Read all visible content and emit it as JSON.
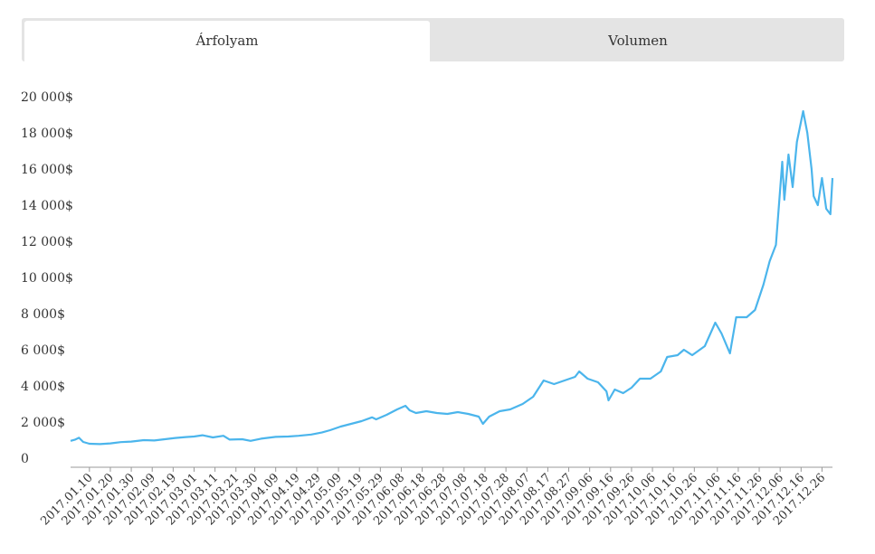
{
  "tabs": [
    {
      "label": "Árfolyam",
      "active": true
    },
    {
      "label": "Volumen",
      "active": false
    }
  ],
  "colors": {
    "line": "#4bb5ec",
    "axis": "#999999",
    "tab_bg": "#e4e4e4"
  },
  "chart_data": {
    "type": "line",
    "title": "",
    "xlabel": "",
    "ylabel": "",
    "ylim": [
      0,
      20000
    ],
    "y_ticks": [
      "0",
      "2 000$",
      "4 000$",
      "6 000$",
      "8 000$",
      "10 000$",
      "12 000$",
      "14 000$",
      "16 000$",
      "18 000$",
      "20 000$"
    ],
    "y_tick_values": [
      0,
      2000,
      4000,
      6000,
      8000,
      10000,
      12000,
      14000,
      16000,
      18000,
      20000
    ],
    "x_ticks": [
      "2017.01.10",
      "2017.01.20",
      "2017.01.30",
      "2017.02.09",
      "2017.02.19",
      "2017.03.01",
      "2017.03.11",
      "2017.03.21",
      "2017.03.30",
      "2017.04.09",
      "2017.04.19",
      "2017.04.29",
      "2017.05.09",
      "2017.05.19",
      "2017.05.29",
      "2017.06.08",
      "2017.06.18",
      "2017.06.28",
      "2017.07.08",
      "2017.07.18",
      "2017.07.28",
      "2017.08.07",
      "2017.08.17",
      "2017.08.27",
      "2017.09.06",
      "2017.09.16",
      "2017.09.26",
      "2017.10.06",
      "2017.10.16",
      "2017.10.26",
      "2017.11.06",
      "2017.11.16",
      "2017.11.26",
      "2017.12.06",
      "2017.12.16",
      "2017.12.26"
    ],
    "x_range": [
      "2017.01.01",
      "2017.12.31"
    ],
    "grid": false,
    "legend": "none",
    "series": [
      {
        "x": [
          "2017.01.01",
          "2017.01.03",
          "2017.01.05",
          "2017.01.07",
          "2017.01.10",
          "2017.01.15",
          "2017.01.20",
          "2017.01.25",
          "2017.01.30",
          "2017.02.05",
          "2017.02.10",
          "2017.02.15",
          "2017.02.20",
          "2017.02.25",
          "2017.03.01",
          "2017.03.05",
          "2017.03.10",
          "2017.03.15",
          "2017.03.18",
          "2017.03.24",
          "2017.03.28",
          "2017.04.02",
          "2017.04.09",
          "2017.04.15",
          "2017.04.20",
          "2017.04.26",
          "2017.05.01",
          "2017.05.05",
          "2017.05.10",
          "2017.05.15",
          "2017.05.20",
          "2017.05.25",
          "2017.05.27",
          "2017.06.01",
          "2017.06.06",
          "2017.06.10",
          "2017.06.12",
          "2017.06.15",
          "2017.06.20",
          "2017.06.25",
          "2017.06.30",
          "2017.07.05",
          "2017.07.10",
          "2017.07.15",
          "2017.07.17",
          "2017.07.20",
          "2017.07.25",
          "2017.07.30",
          "2017.08.05",
          "2017.08.10",
          "2017.08.15",
          "2017.08.20",
          "2017.08.25",
          "2017.08.30",
          "2017.09.01",
          "2017.09.05",
          "2017.09.10",
          "2017.09.14",
          "2017.09.15",
          "2017.09.18",
          "2017.09.22",
          "2017.09.26",
          "2017.09.30",
          "2017.10.05",
          "2017.10.10",
          "2017.10.13",
          "2017.10.18",
          "2017.10.21",
          "2017.10.25",
          "2017.10.31",
          "2017.11.05",
          "2017.11.08",
          "2017.11.12",
          "2017.11.15",
          "2017.11.20",
          "2017.11.24",
          "2017.11.28",
          "2017.12.01",
          "2017.12.04",
          "2017.12.07",
          "2017.12.08",
          "2017.12.10",
          "2017.12.12",
          "2017.12.14",
          "2017.12.17",
          "2017.12.19",
          "2017.12.21",
          "2017.12.22",
          "2017.12.24",
          "2017.12.26",
          "2017.12.28",
          "2017.12.30",
          "2017.12.31"
        ],
        "values": [
          960,
          1020,
          1130,
          900,
          800,
          780,
          820,
          890,
          920,
          1000,
          980,
          1050,
          1120,
          1170,
          1200,
          1270,
          1150,
          1240,
          1030,
          1050,
          960,
          1080,
          1180,
          1200,
          1240,
          1310,
          1420,
          1550,
          1750,
          1900,
          2050,
          2260,
          2150,
          2400,
          2700,
          2900,
          2650,
          2500,
          2600,
          2500,
          2450,
          2550,
          2450,
          2300,
          1900,
          2300,
          2600,
          2700,
          3000,
          3400,
          4300,
          4100,
          4300,
          4500,
          4800,
          4400,
          4200,
          3700,
          3200,
          3800,
          3600,
          3900,
          4400,
          4400,
          4800,
          5600,
          5700,
          6000,
          5700,
          6200,
          7500,
          6900,
          5800,
          7800,
          7800,
          8200,
          9600,
          10900,
          11800,
          16400,
          14300,
          16800,
          15000,
          17500,
          19200,
          18000,
          16000,
          14500,
          14000,
          15500,
          13800,
          13500,
          15500
        ]
      }
    ]
  }
}
